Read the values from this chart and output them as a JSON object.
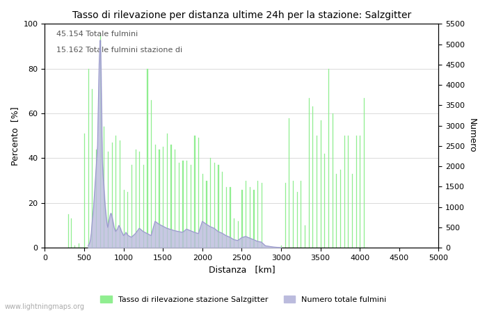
{
  "title": "Tasso di rilevazione per distanza ultime 24h per la stazione: Salzgitter",
  "xlabel": "Distanza   [km]",
  "ylabel_left": "Percento  [%]",
  "ylabel_right": "Numero",
  "annotation_line1": "45.154 Totale fulmini",
  "annotation_line2": "15.162 Totale fulmini stazione di",
  "legend_label1": "Tasso di rilevazione stazione Salzgitter",
  "legend_label2": "Numero totale fulmini",
  "watermark": "www.lightningmaps.org",
  "bar_color": "#90EE90",
  "bar_edge_color": "#90EE90",
  "line_color": "#9999CC",
  "line_fill_color": "#BBBBDD",
  "xlim": [
    0,
    5000
  ],
  "ylim_left": [
    0,
    100
  ],
  "ylim_right": [
    0,
    5500
  ],
  "xticks": [
    0,
    500,
    1000,
    1500,
    2000,
    2500,
    3000,
    3500,
    4000,
    4500,
    5000
  ],
  "yticks_left": [
    0,
    20,
    40,
    60,
    80,
    100
  ],
  "yticks_right": [
    0,
    500,
    1000,
    1500,
    2000,
    2500,
    3000,
    3500,
    4000,
    4500,
    5000,
    5500
  ],
  "grid_color": "#cccccc",
  "background_color": "#ffffff",
  "bin_width": 10,
  "green_bars": [
    [
      300,
      15
    ],
    [
      310,
      0
    ],
    [
      320,
      0
    ],
    [
      330,
      13
    ],
    [
      340,
      0
    ],
    [
      350,
      0
    ],
    [
      360,
      0
    ],
    [
      370,
      0
    ],
    [
      380,
      1
    ],
    [
      390,
      0
    ],
    [
      400,
      0
    ],
    [
      410,
      0
    ],
    [
      420,
      0
    ],
    [
      430,
      2
    ],
    [
      440,
      0
    ],
    [
      450,
      0
    ],
    [
      460,
      0
    ],
    [
      470,
      0
    ],
    [
      480,
      0
    ],
    [
      490,
      0
    ],
    [
      500,
      51
    ],
    [
      510,
      0
    ],
    [
      520,
      0
    ],
    [
      530,
      0
    ],
    [
      540,
      0
    ],
    [
      550,
      80
    ],
    [
      560,
      0
    ],
    [
      570,
      0
    ],
    [
      580,
      0
    ],
    [
      590,
      0
    ],
    [
      600,
      71
    ],
    [
      610,
      0
    ],
    [
      620,
      0
    ],
    [
      630,
      0
    ],
    [
      640,
      0
    ],
    [
      650,
      44
    ],
    [
      660,
      0
    ],
    [
      670,
      0
    ],
    [
      680,
      0
    ],
    [
      690,
      0
    ],
    [
      700,
      95
    ],
    [
      710,
      0
    ],
    [
      720,
      0
    ],
    [
      730,
      0
    ],
    [
      740,
      0
    ],
    [
      750,
      54
    ],
    [
      760,
      0
    ],
    [
      770,
      0
    ],
    [
      780,
      0
    ],
    [
      790,
      0
    ],
    [
      800,
      43
    ],
    [
      810,
      0
    ],
    [
      820,
      0
    ],
    [
      830,
      0
    ],
    [
      840,
      0
    ],
    [
      850,
      47
    ],
    [
      860,
      0
    ],
    [
      870,
      0
    ],
    [
      880,
      0
    ],
    [
      890,
      0
    ],
    [
      900,
      50
    ],
    [
      910,
      0
    ],
    [
      920,
      0
    ],
    [
      930,
      0
    ],
    [
      940,
      0
    ],
    [
      950,
      48
    ],
    [
      960,
      0
    ],
    [
      970,
      0
    ],
    [
      980,
      0
    ],
    [
      990,
      0
    ],
    [
      1000,
      26
    ],
    [
      1010,
      0
    ],
    [
      1020,
      0
    ],
    [
      1030,
      0
    ],
    [
      1040,
      0
    ],
    [
      1050,
      25
    ],
    [
      1060,
      0
    ],
    [
      1070,
      0
    ],
    [
      1080,
      0
    ],
    [
      1090,
      0
    ],
    [
      1100,
      37
    ],
    [
      1110,
      0
    ],
    [
      1120,
      0
    ],
    [
      1130,
      0
    ],
    [
      1140,
      0
    ],
    [
      1150,
      44
    ],
    [
      1160,
      0
    ],
    [
      1170,
      0
    ],
    [
      1180,
      0
    ],
    [
      1190,
      0
    ],
    [
      1200,
      43
    ],
    [
      1210,
      0
    ],
    [
      1220,
      0
    ],
    [
      1230,
      0
    ],
    [
      1240,
      0
    ],
    [
      1250,
      37
    ],
    [
      1260,
      0
    ],
    [
      1270,
      0
    ],
    [
      1280,
      0
    ],
    [
      1290,
      0
    ],
    [
      1300,
      80
    ],
    [
      1310,
      0
    ],
    [
      1320,
      0
    ],
    [
      1330,
      0
    ],
    [
      1340,
      0
    ],
    [
      1350,
      66
    ],
    [
      1360,
      0
    ],
    [
      1370,
      0
    ],
    [
      1380,
      0
    ],
    [
      1390,
      0
    ],
    [
      1400,
      46
    ],
    [
      1410,
      0
    ],
    [
      1420,
      0
    ],
    [
      1430,
      0
    ],
    [
      1440,
      0
    ],
    [
      1450,
      44
    ],
    [
      1460,
      0
    ],
    [
      1470,
      0
    ],
    [
      1480,
      0
    ],
    [
      1490,
      0
    ],
    [
      1500,
      45
    ],
    [
      1510,
      0
    ],
    [
      1520,
      0
    ],
    [
      1530,
      0
    ],
    [
      1540,
      0
    ],
    [
      1550,
      51
    ],
    [
      1560,
      0
    ],
    [
      1570,
      0
    ],
    [
      1580,
      0
    ],
    [
      1590,
      0
    ],
    [
      1600,
      46
    ],
    [
      1610,
      0
    ],
    [
      1620,
      0
    ],
    [
      1630,
      0
    ],
    [
      1640,
      0
    ],
    [
      1650,
      44
    ],
    [
      1660,
      0
    ],
    [
      1670,
      0
    ],
    [
      1680,
      0
    ],
    [
      1690,
      0
    ],
    [
      1700,
      38
    ],
    [
      1710,
      0
    ],
    [
      1720,
      0
    ],
    [
      1730,
      0
    ],
    [
      1740,
      0
    ],
    [
      1750,
      39
    ],
    [
      1760,
      0
    ],
    [
      1770,
      0
    ],
    [
      1780,
      0
    ],
    [
      1790,
      0
    ],
    [
      1800,
      39
    ],
    [
      1810,
      0
    ],
    [
      1820,
      0
    ],
    [
      1830,
      0
    ],
    [
      1840,
      0
    ],
    [
      1850,
      37
    ],
    [
      1860,
      0
    ],
    [
      1870,
      0
    ],
    [
      1880,
      0
    ],
    [
      1890,
      0
    ],
    [
      1900,
      50
    ],
    [
      1910,
      0
    ],
    [
      1920,
      0
    ],
    [
      1930,
      0
    ],
    [
      1940,
      0
    ],
    [
      1950,
      49
    ],
    [
      1960,
      0
    ],
    [
      1970,
      0
    ],
    [
      1980,
      0
    ],
    [
      1990,
      0
    ],
    [
      2000,
      33
    ],
    [
      2010,
      0
    ],
    [
      2020,
      0
    ],
    [
      2030,
      0
    ],
    [
      2040,
      0
    ],
    [
      2050,
      30
    ],
    [
      2060,
      0
    ],
    [
      2070,
      0
    ],
    [
      2080,
      0
    ],
    [
      2090,
      0
    ],
    [
      2100,
      40
    ],
    [
      2110,
      0
    ],
    [
      2120,
      0
    ],
    [
      2130,
      0
    ],
    [
      2140,
      0
    ],
    [
      2150,
      38
    ],
    [
      2160,
      0
    ],
    [
      2170,
      0
    ],
    [
      2180,
      0
    ],
    [
      2190,
      0
    ],
    [
      2200,
      37
    ],
    [
      2210,
      0
    ],
    [
      2220,
      0
    ],
    [
      2230,
      0
    ],
    [
      2240,
      0
    ],
    [
      2250,
      34
    ],
    [
      2260,
      0
    ],
    [
      2270,
      0
    ],
    [
      2280,
      0
    ],
    [
      2290,
      0
    ],
    [
      2300,
      27
    ],
    [
      2310,
      0
    ],
    [
      2320,
      0
    ],
    [
      2330,
      0
    ],
    [
      2340,
      0
    ],
    [
      2350,
      27
    ],
    [
      2360,
      0
    ],
    [
      2370,
      0
    ],
    [
      2380,
      0
    ],
    [
      2390,
      0
    ],
    [
      2400,
      13
    ],
    [
      2410,
      0
    ],
    [
      2420,
      0
    ],
    [
      2430,
      0
    ],
    [
      2440,
      0
    ],
    [
      2450,
      12
    ],
    [
      2460,
      0
    ],
    [
      2470,
      0
    ],
    [
      2480,
      0
    ],
    [
      2490,
      0
    ],
    [
      2500,
      26
    ],
    [
      2510,
      0
    ],
    [
      2520,
      0
    ],
    [
      2530,
      0
    ],
    [
      2540,
      0
    ],
    [
      2550,
      30
    ],
    [
      2560,
      0
    ],
    [
      2570,
      0
    ],
    [
      2580,
      0
    ],
    [
      2590,
      0
    ],
    [
      2600,
      27
    ],
    [
      2610,
      0
    ],
    [
      2620,
      0
    ],
    [
      2630,
      0
    ],
    [
      2640,
      0
    ],
    [
      2650,
      26
    ],
    [
      2660,
      0
    ],
    [
      2670,
      0
    ],
    [
      2680,
      0
    ],
    [
      2690,
      0
    ],
    [
      2700,
      30
    ],
    [
      2710,
      0
    ],
    [
      2720,
      0
    ],
    [
      2730,
      0
    ],
    [
      2740,
      0
    ],
    [
      2750,
      29
    ],
    [
      2760,
      0
    ],
    [
      2770,
      0
    ],
    [
      2780,
      0
    ],
    [
      2790,
      0
    ],
    [
      2800,
      0
    ],
    [
      2850,
      0
    ],
    [
      2900,
      0
    ],
    [
      2950,
      0
    ],
    [
      3000,
      1
    ],
    [
      3010,
      0
    ],
    [
      3020,
      0
    ],
    [
      3030,
      0
    ],
    [
      3040,
      0
    ],
    [
      3050,
      29
    ],
    [
      3060,
      0
    ],
    [
      3070,
      0
    ],
    [
      3080,
      0
    ],
    [
      3090,
      0
    ],
    [
      3100,
      58
    ],
    [
      3110,
      0
    ],
    [
      3120,
      0
    ],
    [
      3130,
      0
    ],
    [
      3140,
      0
    ],
    [
      3150,
      30
    ],
    [
      3160,
      0
    ],
    [
      3170,
      0
    ],
    [
      3180,
      0
    ],
    [
      3190,
      0
    ],
    [
      3200,
      25
    ],
    [
      3210,
      0
    ],
    [
      3220,
      0
    ],
    [
      3230,
      0
    ],
    [
      3240,
      0
    ],
    [
      3250,
      30
    ],
    [
      3260,
      0
    ],
    [
      3270,
      0
    ],
    [
      3280,
      0
    ],
    [
      3290,
      0
    ],
    [
      3300,
      10
    ],
    [
      3310,
      0
    ],
    [
      3320,
      0
    ],
    [
      3330,
      0
    ],
    [
      3340,
      0
    ],
    [
      3350,
      67
    ],
    [
      3360,
      0
    ],
    [
      3370,
      0
    ],
    [
      3380,
      0
    ],
    [
      3390,
      0
    ],
    [
      3400,
      63
    ],
    [
      3410,
      0
    ],
    [
      3420,
      0
    ],
    [
      3430,
      0
    ],
    [
      3440,
      0
    ],
    [
      3450,
      50
    ],
    [
      3460,
      0
    ],
    [
      3470,
      0
    ],
    [
      3480,
      0
    ],
    [
      3490,
      0
    ],
    [
      3500,
      57
    ],
    [
      3510,
      0
    ],
    [
      3520,
      0
    ],
    [
      3530,
      0
    ],
    [
      3540,
      0
    ],
    [
      3550,
      42
    ],
    [
      3560,
      0
    ],
    [
      3570,
      0
    ],
    [
      3580,
      0
    ],
    [
      3590,
      0
    ],
    [
      3600,
      80
    ],
    [
      3610,
      0
    ],
    [
      3620,
      0
    ],
    [
      3630,
      0
    ],
    [
      3640,
      0
    ],
    [
      3650,
      60
    ],
    [
      3660,
      0
    ],
    [
      3670,
      0
    ],
    [
      3680,
      0
    ],
    [
      3690,
      0
    ],
    [
      3700,
      33
    ],
    [
      3710,
      0
    ],
    [
      3720,
      0
    ],
    [
      3730,
      0
    ],
    [
      3740,
      0
    ],
    [
      3750,
      35
    ],
    [
      3760,
      0
    ],
    [
      3770,
      0
    ],
    [
      3780,
      0
    ],
    [
      3790,
      0
    ],
    [
      3800,
      50
    ],
    [
      3810,
      0
    ],
    [
      3820,
      0
    ],
    [
      3830,
      0
    ],
    [
      3840,
      0
    ],
    [
      3850,
      50
    ],
    [
      3860,
      0
    ],
    [
      3870,
      0
    ],
    [
      3880,
      0
    ],
    [
      3890,
      0
    ],
    [
      3900,
      33
    ],
    [
      3910,
      0
    ],
    [
      3920,
      0
    ],
    [
      3930,
      0
    ],
    [
      3940,
      0
    ],
    [
      3950,
      50
    ],
    [
      3960,
      0
    ],
    [
      3970,
      0
    ],
    [
      3980,
      0
    ],
    [
      3990,
      0
    ],
    [
      4000,
      50
    ],
    [
      4010,
      0
    ],
    [
      4020,
      0
    ],
    [
      4030,
      0
    ],
    [
      4040,
      0
    ],
    [
      4050,
      67
    ],
    [
      4060,
      0
    ],
    [
      4070,
      0
    ],
    [
      4080,
      0
    ],
    [
      4090,
      0
    ]
  ],
  "blue_line_x": [
    550,
    560,
    570,
    580,
    590,
    600,
    610,
    620,
    630,
    640,
    650,
    660,
    670,
    680,
    690,
    700,
    705,
    710,
    715,
    720,
    725,
    730,
    740,
    750,
    760,
    770,
    780,
    790,
    800,
    810,
    820,
    830,
    840,
    850,
    860,
    870,
    880,
    890,
    900,
    910,
    920,
    930,
    940,
    950,
    960,
    970,
    980,
    990,
    1000,
    1010,
    1020,
    1030,
    1040,
    1050,
    1060,
    1080,
    1100,
    1150,
    1200,
    1250,
    1300,
    1350,
    1400,
    1450,
    1500,
    1550,
    1600,
    1650,
    1700,
    1750,
    1800,
    1850,
    1900,
    1950,
    2000,
    2050,
    2100,
    2150,
    2200,
    2250,
    2300,
    2350,
    2400,
    2450,
    2500,
    2550,
    2600,
    2650,
    2700,
    2750,
    2800,
    2900,
    3000
  ],
  "blue_line_y": [
    50,
    80,
    120,
    200,
    350,
    600,
    800,
    1000,
    1300,
    1600,
    1900,
    2200,
    2500,
    3500,
    4500,
    5000,
    5100,
    4800,
    4200,
    3500,
    2800,
    2200,
    1800,
    1500,
    1200,
    950,
    750,
    600,
    500,
    600,
    700,
    800,
    850,
    800,
    700,
    600,
    500,
    450,
    400,
    430,
    450,
    500,
    550,
    520,
    480,
    420,
    380,
    340,
    300,
    320,
    340,
    380,
    350,
    320,
    300,
    280,
    260,
    350,
    480,
    400,
    350,
    300,
    650,
    580,
    530,
    480,
    450,
    420,
    400,
    380,
    460,
    420,
    380,
    350,
    650,
    580,
    520,
    480,
    400,
    360,
    300,
    260,
    200,
    180,
    250,
    280,
    240,
    200,
    160,
    140,
    50,
    20,
    5
  ]
}
